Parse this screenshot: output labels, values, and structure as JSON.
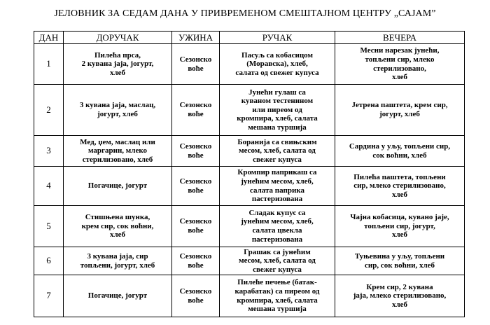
{
  "header": {
    "title": "ЈЕЛОВНИК ЗА СЕДАМ ДАНА У ПРИВРЕМЕНОМ СМЕШТАЈНОМ ЦЕНТРУ „САЈАМ”"
  },
  "table": {
    "columns": [
      "ДАН",
      "ДОРУЧАК",
      "УЖИНА",
      "РУЧАК",
      "ВЕЧЕРА"
    ],
    "rows": [
      [
        [
          "1"
        ],
        [
          "Пилећа прса,",
          "2 кувана јаја, јогурт,",
          "хлеб"
        ],
        [
          "Сезонско",
          "воће"
        ],
        [
          "Пасуљ са кобасицом",
          "(Моравска), хлеб,",
          "салата од свежег купуса"
        ],
        [
          "Месни нарезак јунећи,",
          "топљени сир, млеко",
          "стерилизовано,",
          "хлеб"
        ]
      ],
      [
        [
          "2"
        ],
        [
          "3 кувана јаја, маслац,",
          "јогурт, хлеб"
        ],
        [
          "Сезонско",
          "воће"
        ],
        [
          "Јунећи гулаш са",
          "куваном тестенином",
          "или пиреом од",
          "кромпира, хлеб, салата",
          "мешана туршија"
        ],
        [
          "Јетрена паштета, крем сир,",
          "јогурт, хлеб"
        ]
      ],
      [
        [
          "3"
        ],
        [
          "Мед, џем, маслац или",
          "маргарин, млеко",
          "стерилизовано, хлеб"
        ],
        [
          "Сезонско",
          "воће"
        ],
        [
          "Боранија са свињским",
          "месом, хлеб, салата од",
          "свежег купуса"
        ],
        [
          "Сардина у уљу, топљени сир,",
          "сок воћни, хлеб"
        ]
      ],
      [
        [
          "4"
        ],
        [
          "Погачице, јогурт"
        ],
        [
          "Сезонско",
          "воће"
        ],
        [
          "Кромпир паприкаш са",
          "јунећим месом, хлеб,",
          "салата паприка",
          "пастеризована"
        ],
        [
          "Пилећа паштета, топљени",
          "сир, млеко стерилизовано,",
          "хлеб"
        ]
      ],
      [
        [
          "5"
        ],
        [
          "Стишњена шунка,",
          "крем сир, сок воћни,",
          "хлеб"
        ],
        [
          "Сезонско",
          "воће"
        ],
        [
          "Сладак купус са",
          "јунећим месом, хлеб,",
          "салата цвекла",
          "пастеризована"
        ],
        [
          "Чајна кобасица, кувано јаје,",
          "топљени сир, јогурт,",
          "хлеб"
        ]
      ],
      [
        [
          "6"
        ],
        [
          "3 кувана јаја, сир",
          "топљени, јогурт, хлеб"
        ],
        [
          "Сезонско",
          "воће"
        ],
        [
          "Грашак са јунећим",
          "месом, хлеб, салата од",
          "свежег купуса"
        ],
        [
          "Туњевина у уљу, топљени",
          "сир, сок воћни, хлеб"
        ]
      ],
      [
        [
          "7"
        ],
        [
          "Погачице, јогурт"
        ],
        [
          "Сезонско",
          "воће"
        ],
        [
          "Пилеће печење (батак-",
          "карабатак) са пиреом од",
          "кромпира, хлеб, салата",
          "мешана туршија"
        ],
        [
          "Крем сир, 2 кувана",
          "јаја, млеко стерилизовано,",
          "хлеб"
        ]
      ]
    ]
  }
}
